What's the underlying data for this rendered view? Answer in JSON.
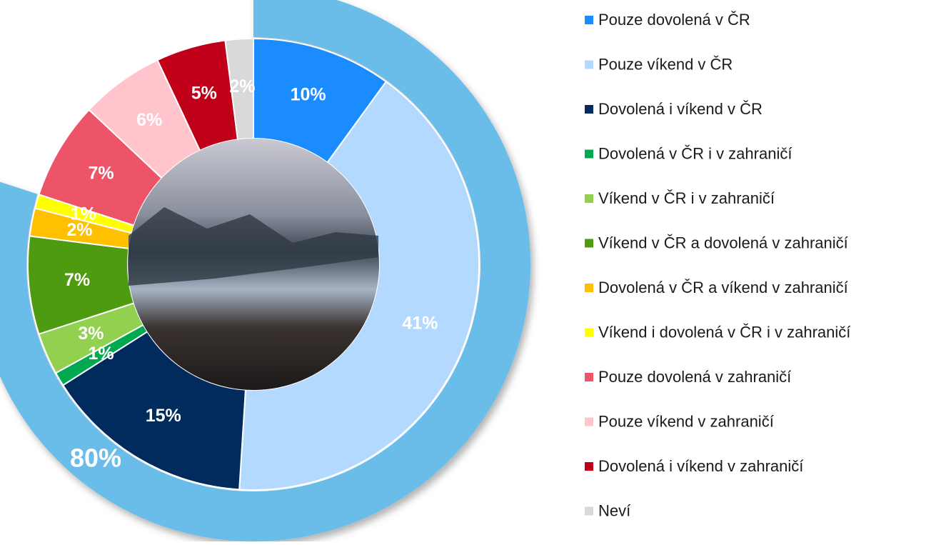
{
  "chart_data": {
    "type": "donut",
    "categories": [
      "Pouze dovolená v ČR",
      "Pouze víkend v ČR",
      "Dovolená i víkend v ČR",
      "Dovolená v ČR i v zahraničí",
      "Víkend v ČR i v zahraničí",
      "Víkend v ČR a dovolená v zahraničí",
      "Dovolená v ČR a víkend v zahraničí",
      "Víkend i dovolená v ČR i v zahraničí",
      "Pouze dovolená v zahraničí",
      "Pouze víkend v zahraničí",
      "Dovolená i víkend v zahraničí",
      "Neví"
    ],
    "values": [
      10,
      41,
      15,
      1,
      3,
      7,
      2,
      1,
      7,
      6,
      5,
      2
    ],
    "value_labels": [
      "10%",
      "41%",
      "15%",
      "1%",
      "3%",
      "7%",
      "2%",
      "1%",
      "7%",
      "6%",
      "5%",
      "2%"
    ],
    "colors": [
      "#1a8cff",
      "#b3d9ff",
      "#002b5c",
      "#00a850",
      "#92d050",
      "#4e9a10",
      "#ffc000",
      "#ffff00",
      "#ee5468",
      "#ffc4cc",
      "#c00018",
      "#d9d9d9"
    ],
    "outer_ring": {
      "values": [
        80
      ],
      "value_labels": [
        "80%"
      ],
      "color": "#6bbde8"
    }
  }
}
